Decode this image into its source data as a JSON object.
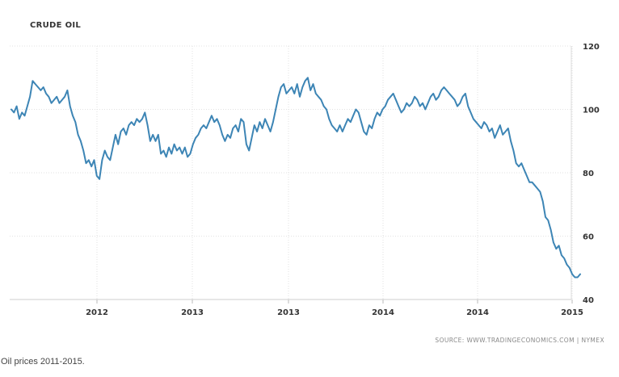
{
  "chart_data": {
    "type": "line",
    "title": "CRUDE OIL",
    "source": "SOURCE: WWW.TRADINGECONOMICS.COM | NYMEX",
    "caption": "Oil prices 2011-2015.",
    "xlabel": "",
    "ylabel": "",
    "x_tick_labels": [
      "2012",
      "2013",
      "2013",
      "2014",
      "2014",
      "2015"
    ],
    "y_ticks": [
      40,
      60,
      80,
      100,
      120
    ],
    "ylim": [
      40,
      120
    ],
    "grid": true,
    "y_axis_side": "right",
    "line_color": "#3d85b5",
    "series": [
      {
        "values": [
          100,
          99,
          101,
          97,
          99,
          98,
          101,
          104,
          109,
          108,
          107,
          106,
          107,
          105,
          104,
          102,
          103,
          104,
          102,
          103,
          104,
          106,
          101,
          98,
          96,
          92,
          90,
          87,
          83,
          84,
          82,
          84,
          79,
          78,
          84,
          87,
          85,
          84,
          88,
          92,
          89,
          93,
          94,
          92,
          95,
          96,
          95,
          97,
          96,
          97,
          99,
          95,
          90,
          92,
          90,
          92,
          86,
          87,
          85,
          88,
          86,
          89,
          87,
          88,
          86,
          88,
          85,
          86,
          89,
          91,
          92,
          94,
          95,
          94,
          96,
          98,
          96,
          97,
          95,
          92,
          90,
          92,
          91,
          94,
          95,
          93,
          97,
          96,
          89,
          87,
          91,
          95,
          93,
          96,
          94,
          97,
          95,
          93,
          96,
          100,
          104,
          107,
          108,
          105,
          106,
          107,
          105,
          108,
          104,
          107,
          109,
          110,
          106,
          108,
          105,
          104,
          103,
          101,
          100,
          97,
          95,
          94,
          93,
          95,
          93,
          95,
          97,
          96,
          98,
          100,
          99,
          96,
          93,
          92,
          95,
          94,
          97,
          99,
          98,
          100,
          101,
          103,
          104,
          105,
          103,
          101,
          99,
          100,
          102,
          101,
          102,
          104,
          103,
          101,
          102,
          100,
          102,
          104,
          105,
          103,
          104,
          106,
          107,
          106,
          105,
          104,
          103,
          101,
          102,
          104,
          105,
          101,
          99,
          97,
          96,
          95,
          94,
          96,
          95,
          93,
          94,
          91,
          93,
          95,
          92,
          93,
          94,
          90,
          87,
          83,
          82,
          83,
          81,
          79,
          77,
          77,
          76,
          75,
          74,
          71,
          66,
          65,
          62,
          58,
          56,
          57,
          54,
          53,
          51,
          50,
          48,
          47,
          47,
          48
        ]
      }
    ]
  }
}
